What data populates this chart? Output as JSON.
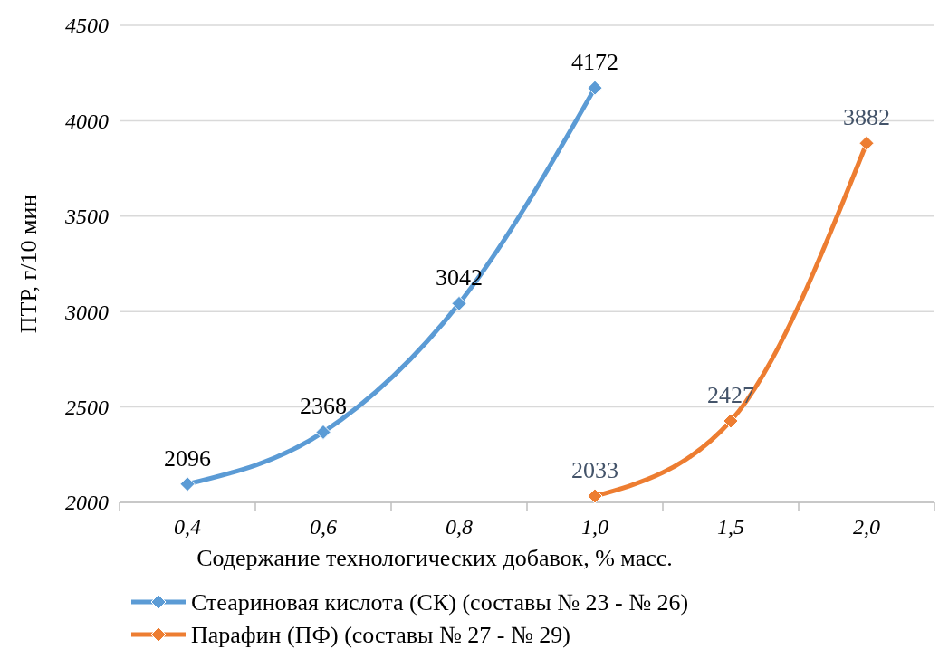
{
  "chart_data": {
    "type": "line",
    "xlabel": "Содержание технологических добавок, % масс.",
    "ylabel": "ПТР, г/10 мин",
    "categories": [
      "0,4",
      "0,6",
      "0,8",
      "1,0",
      "1,5",
      "2,0"
    ],
    "series": [
      {
        "name": "Стеариновая кислота (СК) (составы № 23 - № 26)",
        "color": "#5b9bd5",
        "values": [
          2096,
          2368,
          3042,
          4172,
          null,
          null
        ]
      },
      {
        "name": "Парафин (ПФ) (составы № 27 - № 29)",
        "color": "#ed7d31",
        "values": [
          null,
          null,
          null,
          2033,
          2427,
          3882
        ]
      }
    ],
    "ylim": [
      2000,
      4500
    ],
    "yticks": [
      2000,
      2500,
      3000,
      3500,
      4000,
      4500
    ],
    "grid": "y",
    "legend": "bottom",
    "marker": "diamond",
    "line_style": "solid",
    "data_labels": true
  }
}
